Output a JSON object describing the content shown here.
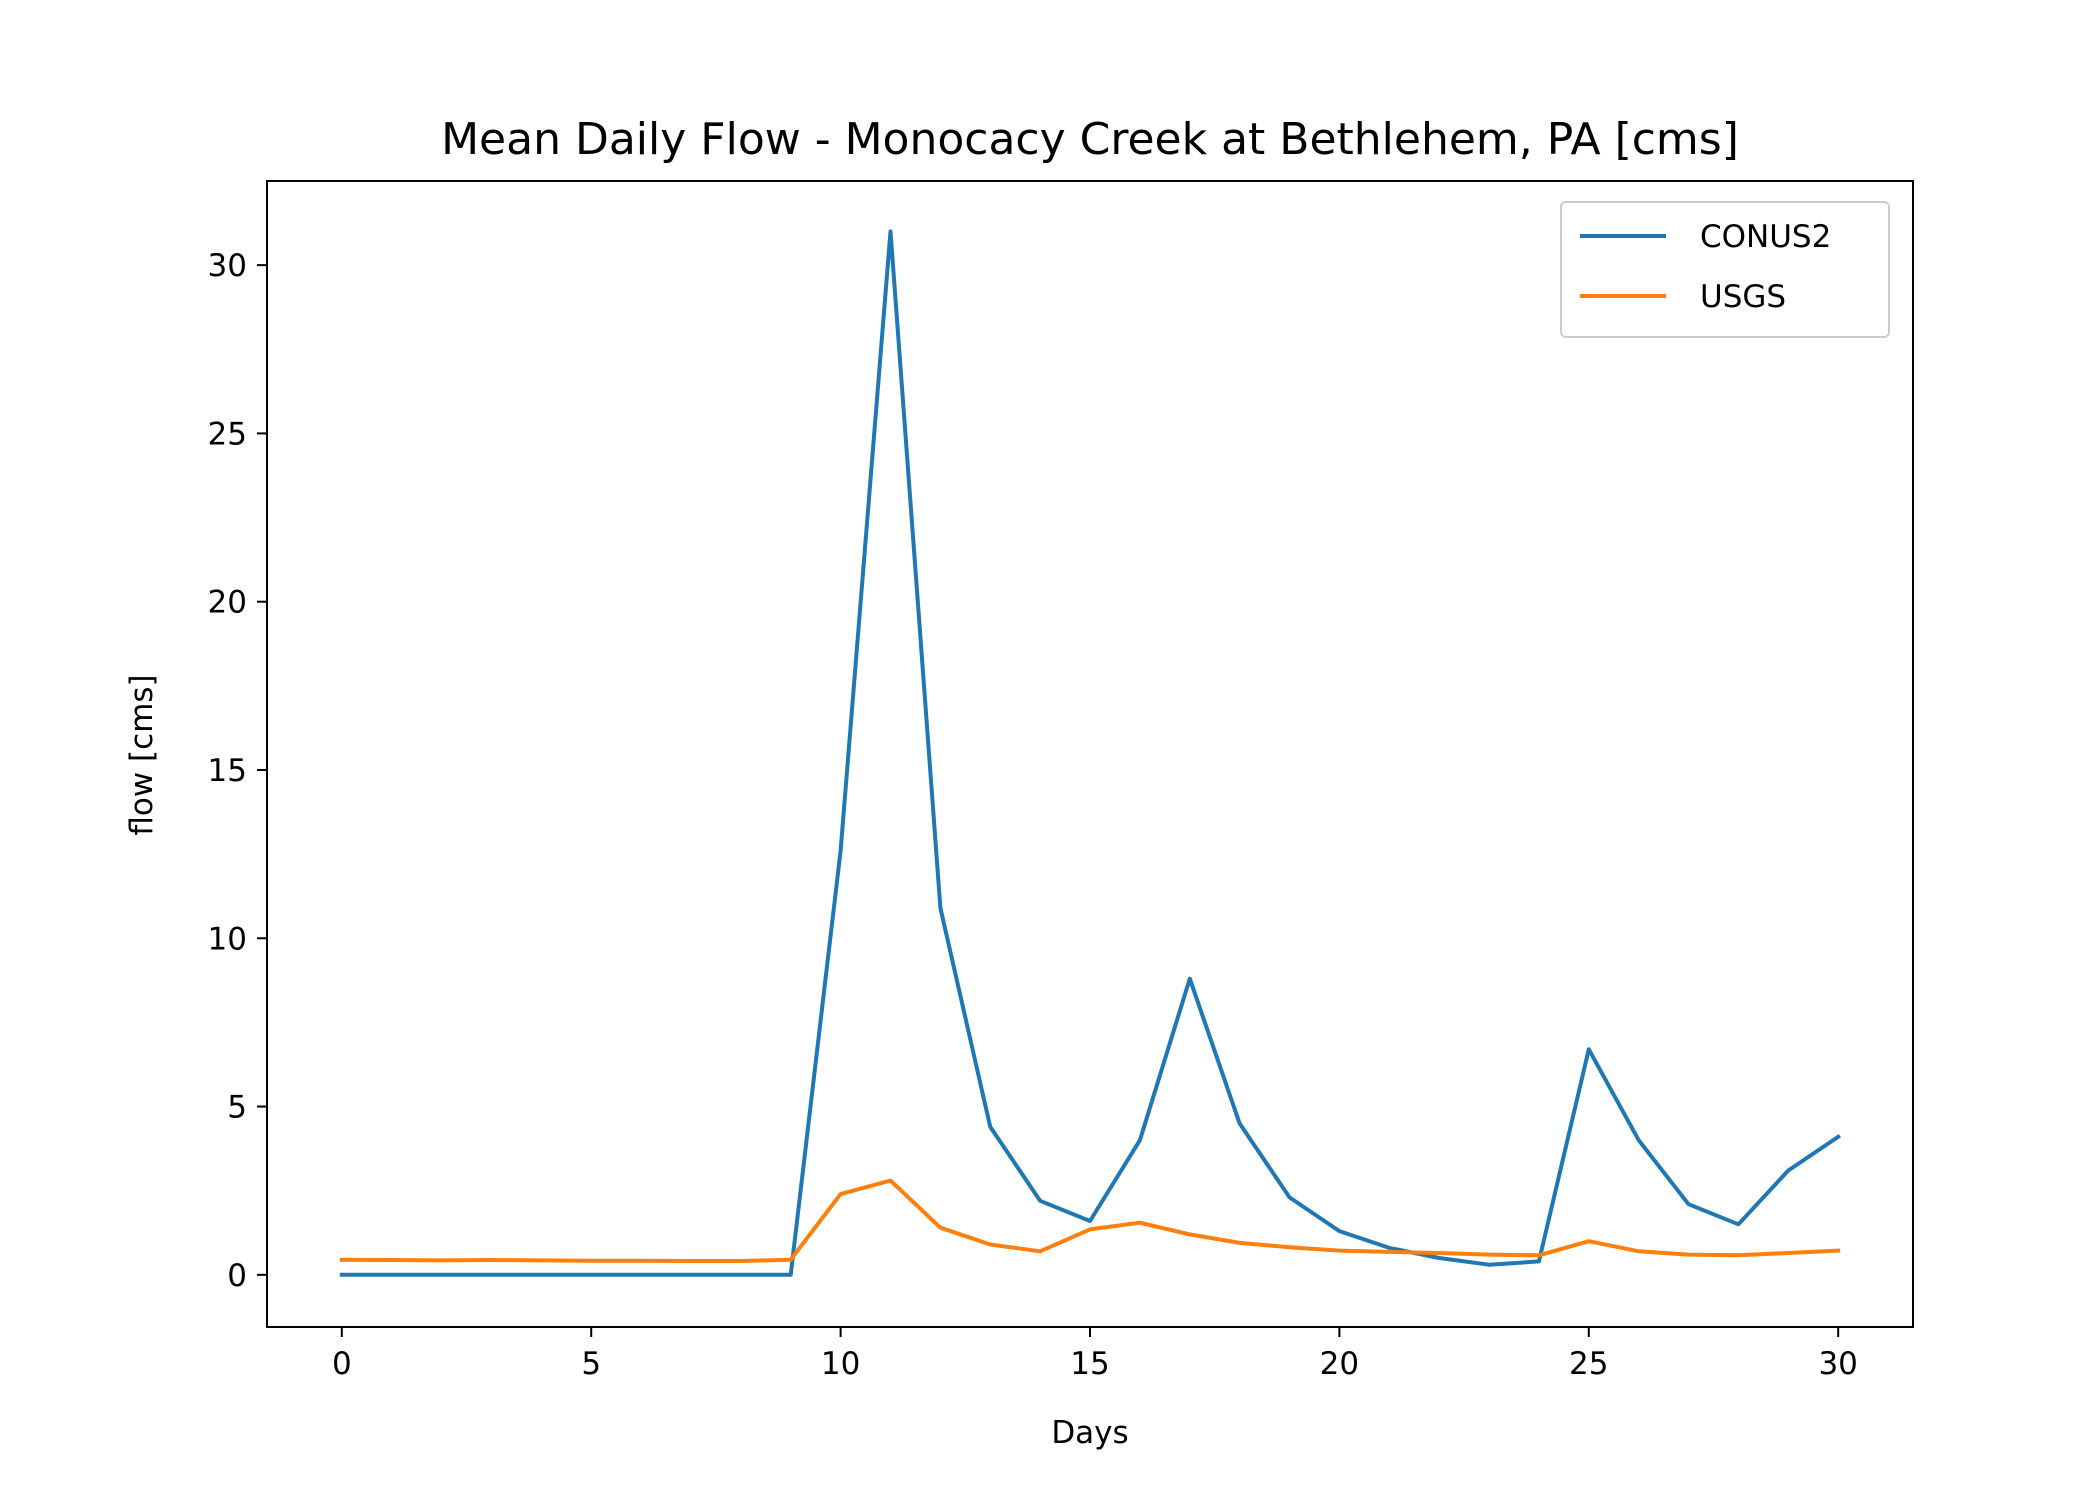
{
  "chart_data": {
    "type": "line",
    "title": "Mean Daily Flow - Monocacy Creek at Bethlehem, PA [cms]",
    "xlabel": "Days",
    "ylabel": "flow [cms]",
    "xlim": [
      -1.5,
      31.5
    ],
    "ylim": [
      -1.55,
      32.5
    ],
    "xticks": [
      0,
      5,
      10,
      15,
      20,
      25,
      30
    ],
    "yticks": [
      0,
      5,
      10,
      15,
      20,
      25,
      30
    ],
    "grid": false,
    "legend_position": "top-right",
    "x": [
      0,
      1,
      2,
      3,
      4,
      5,
      6,
      7,
      8,
      9,
      10,
      11,
      12,
      13,
      14,
      15,
      16,
      17,
      18,
      19,
      20,
      21,
      22,
      23,
      24,
      25,
      26,
      27,
      28,
      29,
      30
    ],
    "series": [
      {
        "name": "CONUS2",
        "color": "#1f77b4",
        "values": [
          0,
          0,
          0,
          0,
          0,
          0,
          0,
          0,
          0,
          0,
          12.6,
          31.0,
          10.9,
          4.4,
          2.2,
          1.6,
          4.0,
          8.8,
          4.5,
          2.3,
          1.3,
          0.8,
          0.5,
          0.3,
          0.4,
          6.7,
          4.0,
          2.1,
          1.5,
          3.1,
          4.1
        ]
      },
      {
        "name": "USGS",
        "color": "#ff7f0e",
        "values": [
          0.45,
          0.44,
          0.43,
          0.44,
          0.43,
          0.42,
          0.42,
          0.41,
          0.41,
          0.45,
          2.4,
          2.8,
          1.4,
          0.9,
          0.7,
          1.35,
          1.55,
          1.2,
          0.95,
          0.82,
          0.72,
          0.68,
          0.65,
          0.6,
          0.58,
          1.0,
          0.7,
          0.6,
          0.58,
          0.65,
          0.72
        ]
      }
    ]
  }
}
